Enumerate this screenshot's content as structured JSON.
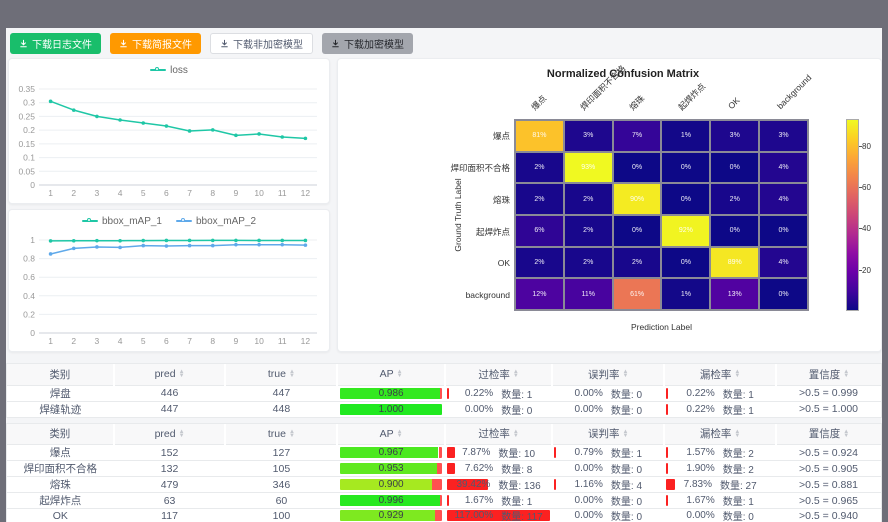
{
  "toolbar": {
    "buttons": [
      {
        "label": "下载日志文件",
        "bg": "#19be6b",
        "color": "#ffffff",
        "border": "none"
      },
      {
        "label": "下载简报文件",
        "bg": "#ff9900",
        "color": "#ffffff",
        "border": "none"
      },
      {
        "label": "下载非加密模型",
        "bg": "#ffffff",
        "color": "#515a6e",
        "border": "1px solid #dcdee2"
      },
      {
        "label": "下载加密模型",
        "bg": "#a3a6ad",
        "color": "#25272c",
        "border": "none"
      }
    ]
  },
  "chart_data": [
    {
      "type": "line",
      "title": "",
      "legend": [
        "loss"
      ],
      "x": [
        1,
        2,
        3,
        4,
        5,
        6,
        7,
        8,
        9,
        10,
        11,
        12
      ],
      "yticks": [
        0,
        0.05,
        0.1,
        0.15,
        0.2,
        0.25,
        0.3,
        0.35
      ],
      "ylim": [
        0,
        0.35
      ],
      "grid": true,
      "legend_position": "top",
      "series": [
        {
          "name": "loss",
          "color": "#1fc7a6",
          "values": [
            0.305,
            0.273,
            0.25,
            0.237,
            0.226,
            0.215,
            0.197,
            0.201,
            0.181,
            0.186,
            0.175,
            0.17
          ]
        }
      ]
    },
    {
      "type": "line",
      "title": "",
      "legend": [
        "bbox_mAP_1",
        "bbox_mAP_2"
      ],
      "x": [
        1,
        2,
        3,
        4,
        5,
        6,
        7,
        8,
        9,
        10,
        11,
        12
      ],
      "yticks": [
        0,
        0.2,
        0.4,
        0.6,
        0.8,
        1
      ],
      "ylim": [
        0,
        1
      ],
      "grid": true,
      "legend_position": "top",
      "series": [
        {
          "name": "bbox_mAP_1",
          "color": "#1fc7a6",
          "values": [
            0.99,
            0.992,
            0.993,
            0.992,
            0.994,
            0.995,
            0.995,
            0.996,
            0.996,
            0.995,
            0.995,
            0.995
          ]
        },
        {
          "name": "bbox_mAP_2",
          "color": "#5fa9ea",
          "values": [
            0.85,
            0.91,
            0.925,
            0.92,
            0.94,
            0.935,
            0.94,
            0.94,
            0.95,
            0.95,
            0.95,
            0.945
          ]
        }
      ]
    },
    {
      "type": "heatmap",
      "title": "Normalized Confusion Matrix",
      "xlabel": "Prediction Label",
      "ylabel": "Ground Truth Label",
      "categories": [
        "爆点",
        "焊印面积不合格",
        "熔珠",
        "起焊炸点",
        "OK",
        "background"
      ],
      "values_pct": [
        [
          81,
          3,
          7,
          1,
          3,
          3
        ],
        [
          2,
          93,
          0,
          0,
          0,
          4
        ],
        [
          2,
          2,
          90,
          0,
          2,
          4
        ],
        [
          6,
          2,
          0,
          92,
          0,
          0
        ],
        [
          2,
          2,
          2,
          0,
          89,
          4
        ],
        [
          12,
          11,
          61,
          1,
          13,
          0
        ]
      ],
      "vmax": 93,
      "colormap": "plasma",
      "colorbar_ticks": [
        20,
        40,
        60,
        80
      ]
    }
  ],
  "tables": {
    "headers": [
      {
        "label": "类别",
        "sortable": false
      },
      {
        "label": "pred",
        "sortable": true
      },
      {
        "label": "true",
        "sortable": true
      },
      {
        "label": "AP",
        "sortable": true
      },
      {
        "label": "过检率",
        "sortable": true
      },
      {
        "label": "误判率",
        "sortable": true
      },
      {
        "label": "漏检率",
        "sortable": true
      },
      {
        "label": "置信度",
        "sortable": true
      }
    ],
    "groups": [
      {
        "rows": [
          {
            "name": "焊盘",
            "pred": "446",
            "true": "447",
            "ap": {
              "text": "0.986",
              "value": 0.986
            },
            "metrics": [
              {
                "pct": "0.22%",
                "value": 0.22,
                "count": "数量: 1"
              },
              {
                "pct": "0.00%",
                "value": 0,
                "count": "数量: 0"
              },
              {
                "pct": "0.22%",
                "value": 0.22,
                "count": "数量: 1"
              }
            ],
            "conf": ">0.5 = 0.999"
          },
          {
            "name": "焊缝轨迹",
            "pred": "447",
            "true": "448",
            "ap": {
              "text": "1.000",
              "value": 1.0
            },
            "metrics": [
              {
                "pct": "0.00%",
                "value": 0,
                "count": "数量: 0"
              },
              {
                "pct": "0.00%",
                "value": 0,
                "count": "数量: 0"
              },
              {
                "pct": "0.22%",
                "value": 0.22,
                "count": "数量: 1"
              }
            ],
            "conf": ">0.5 = 1.000"
          }
        ]
      },
      {
        "rows": [
          {
            "name": "爆点",
            "pred": "152",
            "true": "127",
            "ap": {
              "text": "0.967",
              "value": 0.967
            },
            "metrics": [
              {
                "pct": "7.87%",
                "value": 7.87,
                "count": "数量: 10"
              },
              {
                "pct": "0.79%",
                "value": 0.79,
                "count": "数量: 1"
              },
              {
                "pct": "1.57%",
                "value": 1.57,
                "count": "数量: 2"
              }
            ],
            "conf": ">0.5 = 0.924"
          },
          {
            "name": "焊印面积不合格",
            "pred": "132",
            "true": "105",
            "ap": {
              "text": "0.953",
              "value": 0.953
            },
            "metrics": [
              {
                "pct": "7.62%",
                "value": 7.62,
                "count": "数量: 8"
              },
              {
                "pct": "0.00%",
                "value": 0,
                "count": "数量: 0"
              },
              {
                "pct": "1.90%",
                "value": 1.9,
                "count": "数量: 2"
              }
            ],
            "conf": ">0.5 = 0.905"
          },
          {
            "name": "熔珠",
            "pred": "479",
            "true": "346",
            "ap": {
              "text": "0.900",
              "value": 0.9
            },
            "metrics": [
              {
                "pct": "39.42%",
                "value": 39.42,
                "count": "数量: 136"
              },
              {
                "pct": "1.16%",
                "value": 1.16,
                "count": "数量: 4"
              },
              {
                "pct": "7.83%",
                "value": 7.83,
                "count": "数量: 27"
              }
            ],
            "conf": ">0.5 = 0.881"
          },
          {
            "name": "起焊炸点",
            "pred": "63",
            "true": "60",
            "ap": {
              "text": "0.996",
              "value": 0.996
            },
            "metrics": [
              {
                "pct": "1.67%",
                "value": 1.67,
                "count": "数量: 1"
              },
              {
                "pct": "0.00%",
                "value": 0,
                "count": "数量: 0"
              },
              {
                "pct": "1.67%",
                "value": 1.67,
                "count": "数量: 1"
              }
            ],
            "conf": ">0.5 = 0.965"
          },
          {
            "name": "OK",
            "pred": "117",
            "true": "100",
            "ap": {
              "text": "0.929",
              "value": 0.929
            },
            "metrics": [
              {
                "pct": "117.00%",
                "value": 117,
                "count": "数量: 117"
              },
              {
                "pct": "0.00%",
                "value": 0,
                "count": "数量: 0"
              },
              {
                "pct": "0.00%",
                "value": 0,
                "count": "数量: 0"
              }
            ],
            "conf": ">0.5 = 0.940"
          }
        ]
      }
    ]
  }
}
